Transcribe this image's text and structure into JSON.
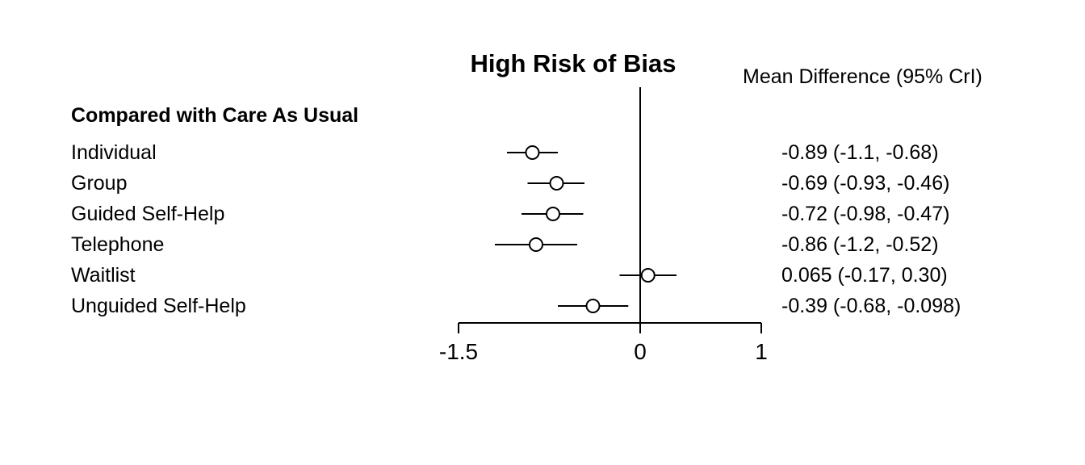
{
  "title": "High Risk of Bias",
  "column_header": "Mean Difference (95% CrI)",
  "group_header": "Compared with Care As Usual",
  "colors": {
    "foreground": "#000000",
    "background": "#ffffff"
  },
  "chart_data": {
    "type": "scatter",
    "subtype": "forest-plot",
    "title": "High Risk of Bias",
    "value_column_header": "Mean Difference (95% CrI)",
    "group_label": "Compared with Care As Usual",
    "xlabel": "",
    "ylabel": "",
    "xlim": [
      -1.5,
      1
    ],
    "x_ticks": [
      -1.5,
      0,
      1
    ],
    "x_tick_labels": [
      "-1.5",
      "0",
      "1"
    ],
    "reference_line": 0,
    "grid": false,
    "legend": "none",
    "rows": [
      {
        "label": "Individual",
        "estimate": -0.89,
        "ci_lower": -1.1,
        "ci_upper": -0.68,
        "text": "-0.89 (-1.1, -0.68)"
      },
      {
        "label": "Group",
        "estimate": -0.69,
        "ci_lower": -0.93,
        "ci_upper": -0.46,
        "text": "-0.69 (-0.93, -0.46)"
      },
      {
        "label": "Guided Self-Help",
        "estimate": -0.72,
        "ci_lower": -0.98,
        "ci_upper": -0.47,
        "text": "-0.72 (-0.98, -0.47)"
      },
      {
        "label": "Telephone",
        "estimate": -0.86,
        "ci_lower": -1.2,
        "ci_upper": -0.52,
        "text": "-0.86 (-1.2, -0.52)"
      },
      {
        "label": "Waitlist",
        "estimate": 0.065,
        "ci_lower": -0.17,
        "ci_upper": 0.3,
        "text": "0.065 (-0.17, 0.30)"
      },
      {
        "label": "Unguided Self-Help",
        "estimate": -0.39,
        "ci_lower": -0.68,
        "ci_upper": -0.098,
        "text": "-0.39 (-0.68, -0.098)"
      }
    ]
  }
}
